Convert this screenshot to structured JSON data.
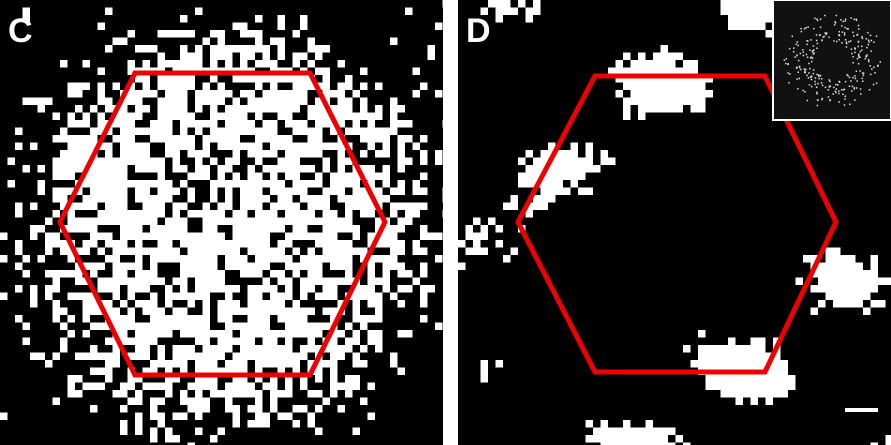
{
  "panels": [
    {
      "label": "C"
    },
    {
      "label": "D"
    }
  ]
}
